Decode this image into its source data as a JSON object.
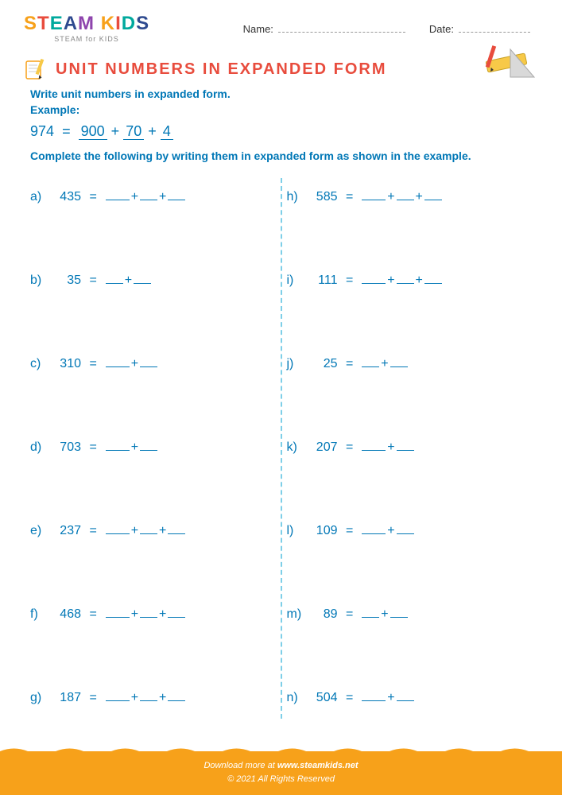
{
  "logo": {
    "letters": [
      "S",
      "T",
      "E",
      "A",
      "M",
      " ",
      "K",
      "I",
      "D",
      "S"
    ],
    "sub": "STEAM for KIDS"
  },
  "header": {
    "name_label": "Name:",
    "date_label": "Date:"
  },
  "title": "UNIT NUMBERS IN EXPANDED FORM",
  "instr1": "Write unit numbers in expanded form.",
  "instr1b": "Example:",
  "example": {
    "num": "974",
    "eq": "=",
    "p1": "900",
    "plus": "+",
    "p2": "70",
    "p3": "4"
  },
  "instr2": "Complete the following by writing them in expanded form as shown in the example.",
  "left_problems": [
    {
      "letter": "a)",
      "num": "435",
      "blanks": 3
    },
    {
      "letter": "b)",
      "num": "35",
      "blanks": 2
    },
    {
      "letter": "c)",
      "num": "310",
      "blanks": 2
    },
    {
      "letter": "d)",
      "num": "703",
      "blanks": 2
    },
    {
      "letter": "e)",
      "num": "237",
      "blanks": 3
    },
    {
      "letter": "f)",
      "num": "468",
      "blanks": 3
    },
    {
      "letter": "g)",
      "num": "187",
      "blanks": 3
    }
  ],
  "right_problems": [
    {
      "letter": "h)",
      "num": "585",
      "blanks": 3
    },
    {
      "letter": "i)",
      "num": "111",
      "blanks": 3
    },
    {
      "letter": "j)",
      "num": "25",
      "blanks": 2
    },
    {
      "letter": "k)",
      "num": "207",
      "blanks": 2
    },
    {
      "letter": "l)",
      "num": "109",
      "blanks": 2
    },
    {
      "letter": "m)",
      "num": "89",
      "blanks": 2
    },
    {
      "letter": "n)",
      "num": "504",
      "blanks": 2
    }
  ],
  "footer": {
    "line1a": "Download more at ",
    "link": "www.steamkids.net",
    "line2": "© 2021 All Rights Reserved"
  },
  "colors": {
    "brand_blue": "#0077b6",
    "title_red": "#e84c3d",
    "footer_orange": "#f7a11a",
    "divider": "#7ecfe8"
  }
}
